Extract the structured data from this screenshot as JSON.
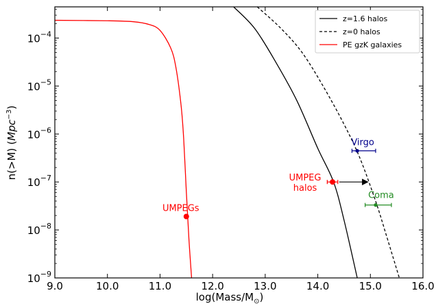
{
  "chart_data": {
    "type": "line",
    "xlabel": "log(Mass/M",
    "xlabel_sub": "⊙",
    "xlabel_close": ")",
    "ylabel": "n(>M) (",
    "ylabel_unit": "Mpc",
    "ylabel_exp": "−3",
    "ylabel_close": ")",
    "xlim": [
      9.0,
      16.0
    ],
    "ylim_log10": [
      -9,
      -3.35
    ],
    "yscale": "log",
    "grid": false,
    "legend_position": "top-right",
    "x_ticks": [
      "9.0",
      "10.0",
      "11.0",
      "12.0",
      "13.0",
      "14.0",
      "15.0",
      "16.0"
    ],
    "y_ticks": [
      {
        "base": "10",
        "exp": "−4"
      },
      {
        "base": "10",
        "exp": "−5"
      },
      {
        "base": "10",
        "exp": "−6"
      },
      {
        "base": "10",
        "exp": "−7"
      },
      {
        "base": "10",
        "exp": "−8"
      },
      {
        "base": "10",
        "exp": "−9"
      }
    ],
    "series": [
      {
        "name": "z=1.6 halos",
        "color": "#000000",
        "dash": "solid",
        "x": [
          12.4,
          12.8,
          13.2,
          13.6,
          14.0,
          14.3,
          14.5,
          14.75
        ],
        "log10_y": [
          -3.35,
          -3.8,
          -4.5,
          -5.3,
          -6.3,
          -7.0,
          -7.8,
          -9.0
        ]
      },
      {
        "name": "z=0 halos",
        "color": "#000000",
        "dash": "dashed",
        "x": [
          12.85,
          13.3,
          13.7,
          14.1,
          14.5,
          14.8,
          15.1,
          15.3,
          15.55
        ],
        "log10_y": [
          -3.35,
          -3.8,
          -4.3,
          -5.0,
          -5.8,
          -6.5,
          -7.4,
          -8.1,
          -9.0
        ]
      },
      {
        "name": "PE gzK galaxies",
        "color": "#ff0000",
        "dash": "solid",
        "x": [
          9.0,
          10.0,
          10.5,
          10.8,
          11.0,
          11.2,
          11.3,
          11.4,
          11.45,
          11.5,
          11.55,
          11.6
        ],
        "log10_y": [
          -3.63,
          -3.64,
          -3.66,
          -3.72,
          -3.84,
          -4.2,
          -4.6,
          -5.4,
          -6.1,
          -7.2,
          -8.2,
          -9.0
        ]
      }
    ],
    "points": [
      {
        "label": "UMPEGs",
        "x": 11.5,
        "log10_y": -7.72,
        "color": "#ff0000",
        "xerr": [
          0,
          0
        ]
      },
      {
        "label": "UMPEG",
        "label2": "halos",
        "x": 14.28,
        "log10_y": -7.0,
        "color": "#ff0000",
        "xerr": [
          0.1,
          0.1
        ],
        "arrow_to_x": 14.95
      },
      {
        "label": "Virgo",
        "x": 14.75,
        "log10_y": -6.35,
        "color": "#00008b",
        "xerr": [
          0.1,
          0.35
        ]
      },
      {
        "label": "Coma",
        "x": 15.1,
        "log10_y": -7.48,
        "color": "#228b22",
        "xerr": [
          0.2,
          0.3
        ]
      }
    ]
  }
}
